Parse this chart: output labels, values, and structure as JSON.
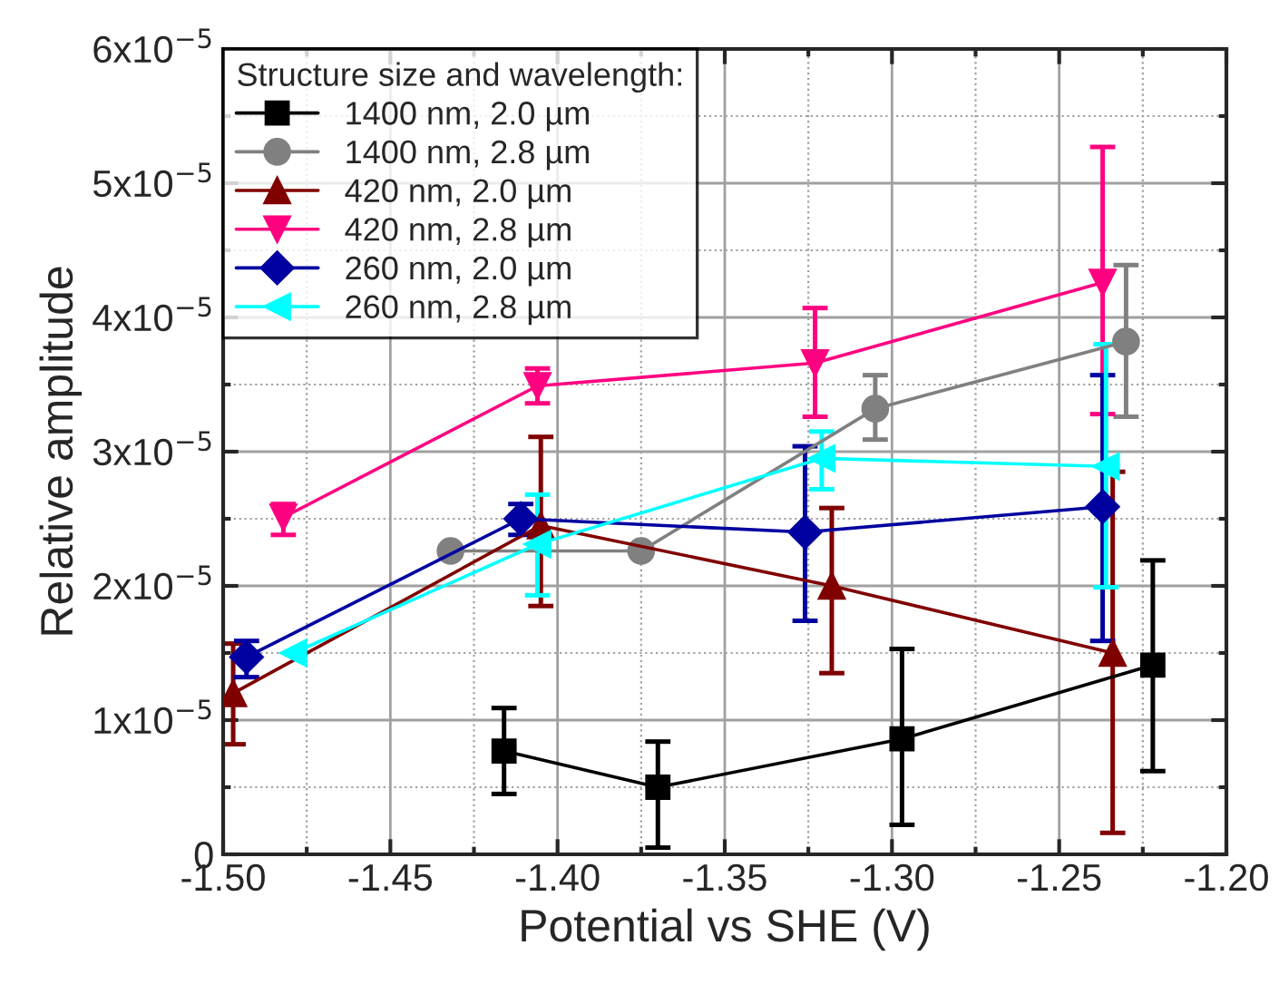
{
  "chart_data": {
    "type": "line",
    "xlabel": "Potential vs SHE (V)",
    "ylabel": "Relative amplitude",
    "legend_title": "Structure size and wavelength:",
    "legend": "top left",
    "grid": true,
    "xlim": [
      -1.5,
      -1.2
    ],
    "xticks": [
      {
        "value": -1.5,
        "label": "-1.50"
      },
      {
        "value": -1.45,
        "label": "-1.45"
      },
      {
        "value": -1.4,
        "label": "-1.40"
      },
      {
        "value": -1.35,
        "label": "-1.35"
      },
      {
        "value": -1.3,
        "label": "-1.30"
      },
      {
        "value": -1.25,
        "label": "-1.25"
      },
      {
        "value": -1.2,
        "label": "-1.20"
      }
    ],
    "ylim": [
      0,
      6e-05
    ],
    "yticks": [
      0,
      {
        "value": 1e-05,
        "label": "1x10$^{−5}$"
      },
      {
        "value": 2e-05,
        "label": "2x10$^{−5}$"
      },
      {
        "value": 3e-05,
        "label": "3x10$^{−5}$"
      },
      {
        "value": 4e-05,
        "label": "4x10$^{−5}$"
      },
      {
        "value": 5e-05,
        "label": "5x10$^{−5}$"
      },
      {
        "value": 6e-05,
        "label": "6x10$^{−5}$"
      }
    ],
    "series": [
      {
        "name": "1400 nm, 2.0 µm",
        "color": "#000000",
        "marker": "square",
        "x": [
          -1.416,
          -1.37,
          -1.297,
          -1.222
        ],
        "values": [
          7.7e-06,
          5e-06,
          8.6e-06,
          1.41e-05
        ],
        "errors": [
          [
            4.5e-06,
            1.09e-05
          ],
          [
            5e-07,
            8.4e-06
          ],
          [
            2.2e-06,
            1.53e-05
          ],
          [
            6.2e-06,
            2.19e-05
          ]
        ]
      },
      {
        "name": "1400 nm, 2.8 µm",
        "color": "#808080",
        "marker": "circle",
        "x": [
          -1.432,
          -1.375,
          -1.305,
          -1.23
        ],
        "values": [
          2.26e-05,
          2.26e-05,
          3.32e-05,
          3.82e-05
        ],
        "errors": [
          null,
          null,
          [
            3.09e-05,
            3.57e-05
          ],
          [
            3.26e-05,
            4.39e-05
          ]
        ]
      },
      {
        "name": "420 nm, 2.0 µm",
        "color": "#800000",
        "marker": "triangle",
        "x": [
          -1.497,
          -1.405,
          -1.318,
          -1.234
        ],
        "values": [
          1.2e-05,
          2.45e-05,
          2e-05,
          1.5e-05
        ],
        "errors": [
          [
            8.2e-06,
            1.57e-05
          ],
          [
            1.85e-05,
            3.11e-05
          ],
          [
            1.35e-05,
            2.58e-05
          ],
          [
            1.6e-06,
            2.85e-05
          ]
        ]
      },
      {
        "name": "420 nm, 2.8 µm",
        "color": "#ff0080",
        "marker": "triangle_down",
        "x": [
          -1.482,
          -1.406,
          -1.323,
          -1.237
        ],
        "values": [
          2.51e-05,
          3.49e-05,
          3.66e-05,
          4.26e-05
        ],
        "errors": [
          [
            2.38e-05,
            2.61e-05
          ],
          [
            3.36e-05,
            3.62e-05
          ],
          [
            3.26e-05,
            4.07e-05
          ],
          [
            3.28e-05,
            5.27e-05
          ]
        ]
      },
      {
        "name": "260 nm, 2.0 µm",
        "color": "#0000a0",
        "marker": "diamond",
        "x": [
          -1.493,
          -1.411,
          -1.326,
          -1.237
        ],
        "values": [
          1.47e-05,
          2.5e-05,
          2.4e-05,
          2.59e-05
        ],
        "errors": [
          [
            1.32e-05,
            1.59e-05
          ],
          [
            2.38e-05,
            2.61e-05
          ],
          [
            1.74e-05,
            3.04e-05
          ],
          [
            1.59e-05,
            3.57e-05
          ]
        ]
      },
      {
        "name": "260 nm, 2.8 µm",
        "color": "#00ffff",
        "marker": "triangle_left",
        "x": [
          -1.479,
          -1.406,
          -1.321,
          -1.236
        ],
        "values": [
          1.5e-05,
          2.31e-05,
          2.95e-05,
          2.89e-05
        ],
        "errors": [
          null,
          [
            1.93e-05,
            2.68e-05
          ],
          [
            2.72e-05,
            3.15e-05
          ],
          [
            1.99e-05,
            3.8e-05
          ]
        ]
      }
    ]
  }
}
